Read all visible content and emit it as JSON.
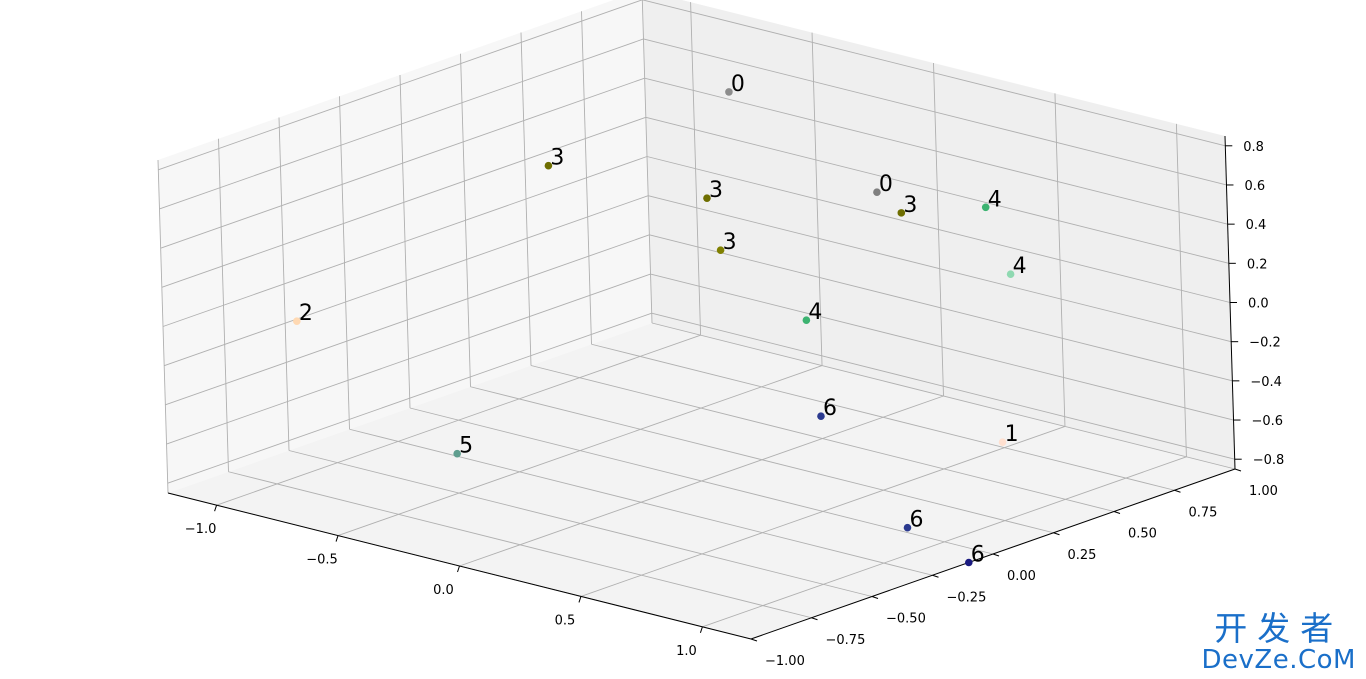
{
  "chart_data": {
    "type": "scatter",
    "projection": "3d",
    "title": "",
    "xlabel": "",
    "ylabel": "",
    "zlabel": "",
    "grid": true,
    "x_ticks": [
      "−1.0",
      "−0.5",
      "0.0",
      "0.5",
      "1.0"
    ],
    "y_ticks": [
      "−1.00",
      "−0.75",
      "−0.50",
      "−0.25",
      "0.00",
      "0.25",
      "0.50",
      "0.75",
      "1.00"
    ],
    "z_ticks": [
      "−0.8",
      "−0.6",
      "−0.4",
      "−0.2",
      "0.0",
      "0.2",
      "0.4",
      "0.6",
      "0.8"
    ],
    "points": [
      {
        "label": "0",
        "color": "#8c8c8c",
        "x": -0.7,
        "y": 0.85,
        "z": 0.55
      },
      {
        "label": "0",
        "color": "#7f7f7f",
        "x": -0.2,
        "y": 0.95,
        "z": 0.15
      },
      {
        "label": "3",
        "color": "#6e6e00",
        "x": -0.9,
        "y": 0.3,
        "z": 0.35
      },
      {
        "label": "3",
        "color": "#6e6e00",
        "x": -0.5,
        "y": 0.55,
        "z": 0.2
      },
      {
        "label": "3",
        "color": "#6e6e00",
        "x": 0.0,
        "y": 0.85,
        "z": 0.15
      },
      {
        "label": "3",
        "color": "#808000",
        "x": -0.45,
        "y": 0.55,
        "z": -0.05
      },
      {
        "label": "4",
        "color": "#3cb371",
        "x": 0.3,
        "y": 0.9,
        "z": 0.25
      },
      {
        "label": "4",
        "color": "#8fd9b1",
        "x": 0.75,
        "y": 0.55,
        "z": 0.2
      },
      {
        "label": "4",
        "color": "#3cb371",
        "x": 0.1,
        "y": 0.35,
        "z": -0.15
      },
      {
        "label": "2",
        "color": "#ffd9b3",
        "x": -1.05,
        "y": -0.6,
        "z": -0.1
      },
      {
        "label": "5",
        "color": "#5f9e8f",
        "x": -0.3,
        "y": -0.7,
        "z": -0.5
      },
      {
        "label": "6",
        "color": "#2b3a8f",
        "x": 0.25,
        "y": 0.25,
        "z": -0.55
      },
      {
        "label": "6",
        "color": "#2b3a8f",
        "x": 0.95,
        "y": -0.1,
        "z": -0.75
      },
      {
        "label": "6",
        "color": "#1a1a80",
        "x": 1.2,
        "y": -0.1,
        "z": -0.85
      },
      {
        "label": "1",
        "color": "#ffe0d0",
        "x": 1.0,
        "y": 0.25,
        "z": -0.45
      }
    ]
  },
  "watermark": {
    "line1": "开发者",
    "line2": "DevZe.CoM"
  }
}
